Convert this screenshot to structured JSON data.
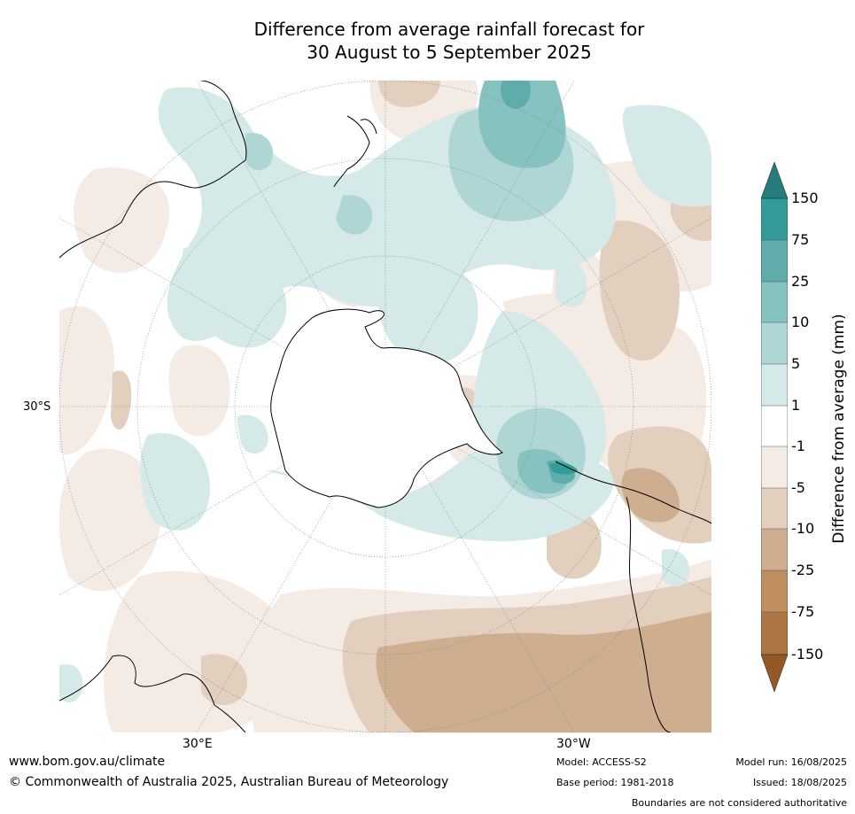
{
  "title": {
    "line1": "Difference from average rainfall forecast for",
    "line2": "30 August to 5 September 2025"
  },
  "map": {
    "projection": "south-polar stereographic",
    "lat_label": "30°S",
    "lon_labels": {
      "east": "30°E",
      "west": "30°W"
    },
    "legend_colors": {
      "above_150": "#257d7b",
      "75_150": "#339b99",
      "25_75": "#5eadab",
      "10_25": "#86c2c0",
      "5_10": "#aed6d4",
      "1_5": "#d5e9e8",
      "minus1_1": "#ffffff",
      "minus5_minus1": "#f4ebe5",
      "minus10_minus5": "#e3cfbe",
      "minus25_minus10": "#cfae90",
      "minus75_minus25": "#bd8e5f",
      "minus150_minus75": "#ad7541",
      "below_minus150": "#935a26"
    }
  },
  "colorbar": {
    "label": "Difference from average (mm)",
    "ticks": [
      "150",
      "75",
      "25",
      "10",
      "5",
      "1",
      "-1",
      "-5",
      "-10",
      "-25",
      "-75",
      "-150"
    ]
  },
  "footer": {
    "website": "www.bom.gov.au/climate",
    "copyright": "© Commonwealth of Australia 2025, Australian Bureau of Meteorology",
    "model": "Model: ACCESS-S2",
    "base_period": "Base period: 1981-2018",
    "model_run": "Model run: 16/08/2025",
    "issued": "Issued: 18/08/2025",
    "disclaimer": "Boundaries are not considered authoritative"
  }
}
